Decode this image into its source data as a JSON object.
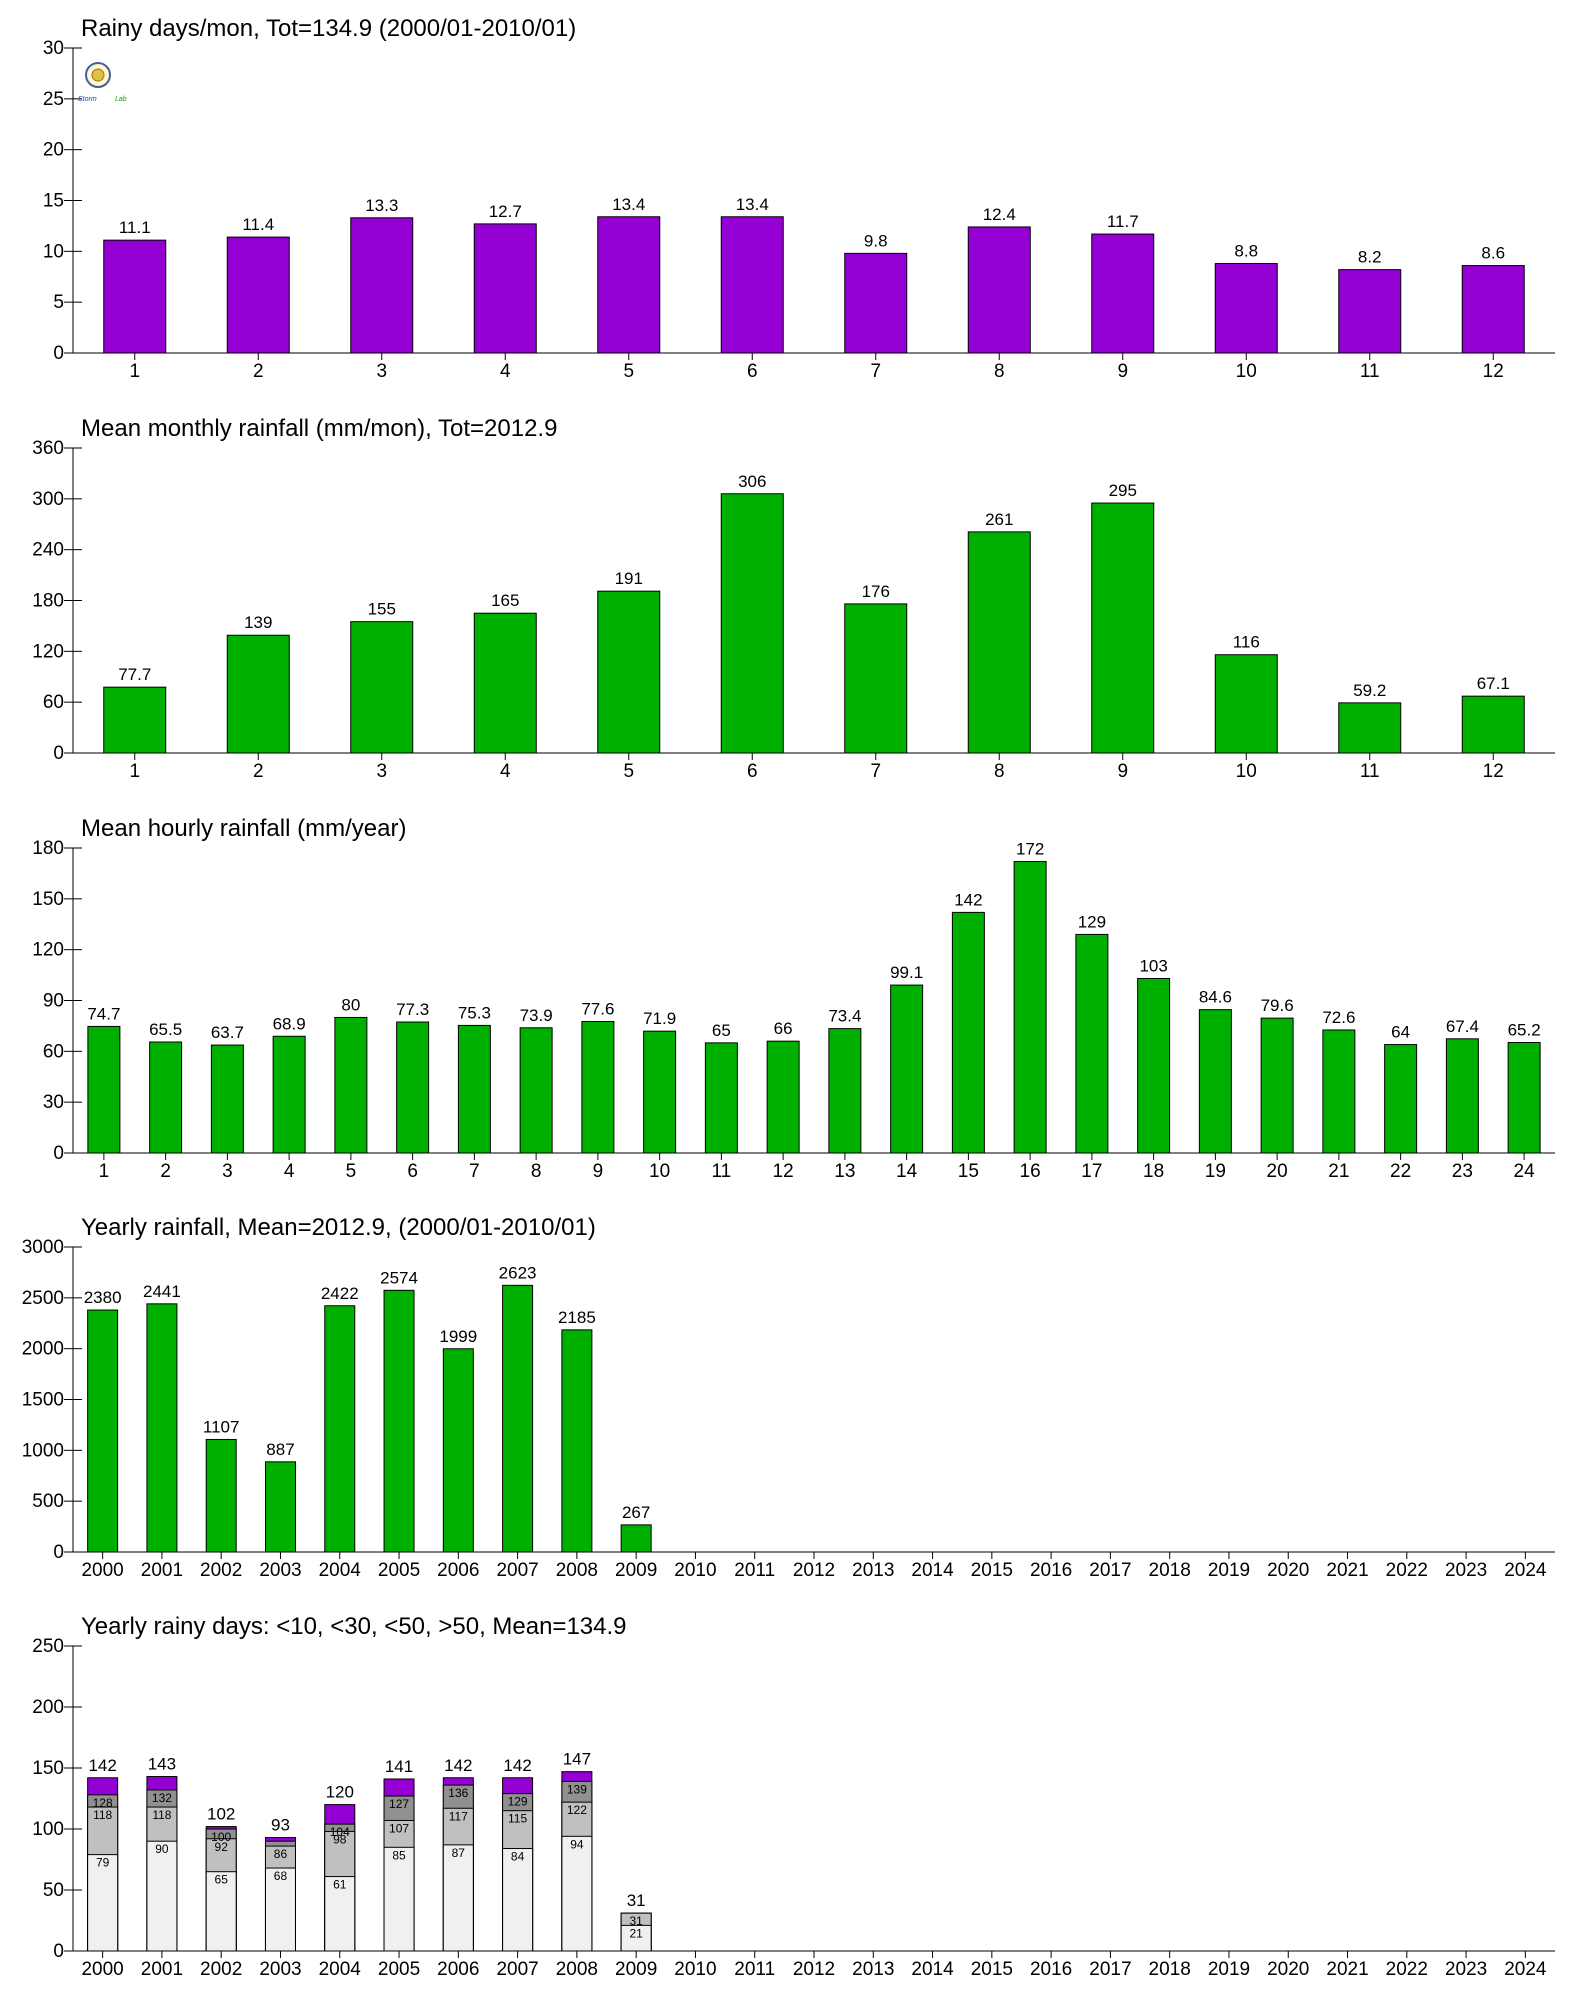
{
  "logo": {
    "text_a": "Storm",
    "text_b": "Lab"
  },
  "charts": [
    {
      "id": "rainy-days",
      "title": "Rainy days/mon, Tot=134.9 (2000/01-2010/01)",
      "type": "bar",
      "color": "#9400d3",
      "ylim": [
        0,
        30
      ],
      "yticks": [
        0,
        5,
        10,
        15,
        20,
        25,
        30
      ],
      "categories": [
        "1",
        "2",
        "3",
        "4",
        "5",
        "6",
        "7",
        "8",
        "9",
        "10",
        "11",
        "12"
      ],
      "values": [
        11.1,
        11.4,
        13.3,
        12.7,
        13.4,
        13.4,
        9.8,
        12.4,
        11.7,
        8.8,
        8.2,
        8.6
      ],
      "labels": [
        "11.1",
        "11.4",
        "13.3",
        "12.7",
        "13.4",
        "13.4",
        "9.8",
        "12.4",
        "11.7",
        "8.8",
        "8.2",
        "8.6"
      ]
    },
    {
      "id": "monthly-rainfall",
      "title": "Mean monthly rainfall (mm/mon), Tot=2012.9",
      "type": "bar",
      "color": "#00b000",
      "ylim": [
        0,
        360
      ],
      "yticks": [
        0,
        60,
        120,
        180,
        240,
        300,
        360
      ],
      "categories": [
        "1",
        "2",
        "3",
        "4",
        "5",
        "6",
        "7",
        "8",
        "9",
        "10",
        "11",
        "12"
      ],
      "values": [
        77.7,
        139,
        155,
        165,
        191,
        306,
        176,
        261,
        295,
        116,
        59.2,
        67.1
      ],
      "labels": [
        "77.7",
        "139",
        "155",
        "165",
        "191",
        "306",
        "176",
        "261",
        "295",
        "116",
        "59.2",
        "67.1"
      ]
    },
    {
      "id": "hourly-rainfall",
      "title": "Mean hourly rainfall (mm/year)",
      "type": "bar",
      "color": "#00b000",
      "ylim": [
        0,
        180
      ],
      "yticks": [
        0,
        30,
        60,
        90,
        120,
        150,
        180
      ],
      "categories": [
        "1",
        "2",
        "3",
        "4",
        "5",
        "6",
        "7",
        "8",
        "9",
        "10",
        "11",
        "12",
        "13",
        "14",
        "15",
        "16",
        "17",
        "18",
        "19",
        "20",
        "21",
        "22",
        "23",
        "24"
      ],
      "values": [
        74.7,
        65.5,
        63.7,
        68.9,
        80,
        77.3,
        75.3,
        73.9,
        77.6,
        71.9,
        65,
        66,
        73.4,
        99.1,
        142,
        172,
        129,
        103,
        84.6,
        79.6,
        72.6,
        64,
        67.4,
        65.2
      ],
      "labels": [
        "74.7",
        "65.5",
        "63.7",
        "68.9",
        "80",
        "77.3",
        "75.3",
        "73.9",
        "77.6",
        "71.9",
        "65",
        "66",
        "73.4",
        "99.1",
        "142",
        "172",
        "129",
        "103",
        "84.6",
        "79.6",
        "72.6",
        "64",
        "67.4",
        "65.2"
      ]
    },
    {
      "id": "yearly-rainfall",
      "title": "Yearly rainfall, Mean=2012.9, (2000/01-2010/01)",
      "type": "bar",
      "color": "#00b000",
      "ylim": [
        0,
        3000
      ],
      "yticks": [
        0,
        500,
        1000,
        1500,
        2000,
        2500,
        3000
      ],
      "categories": [
        "2000",
        "2001",
        "2002",
        "2003",
        "2004",
        "2005",
        "2006",
        "2007",
        "2008",
        "2009",
        "2010",
        "2011",
        "2012",
        "2013",
        "2014",
        "2015",
        "2016",
        "2017",
        "2018",
        "2019",
        "2020",
        "2021",
        "2022",
        "2023",
        "2024"
      ],
      "values": [
        2380,
        2441,
        1107,
        887,
        2422,
        2574,
        1999,
        2623,
        2185,
        267,
        null,
        null,
        null,
        null,
        null,
        null,
        null,
        null,
        null,
        null,
        null,
        null,
        null,
        null,
        null
      ],
      "labels": [
        "2380",
        "2441",
        "1107",
        "887",
        "2422",
        "2574",
        "1999",
        "2623",
        "2185",
        "267",
        "",
        "",
        "",
        "",
        "",
        "",
        "",
        "",
        "",
        "",
        "",
        "",
        "",
        "",
        ""
      ]
    },
    {
      "id": "yearly-rainy-days",
      "title": "Yearly rainy days: <10, <30, <50, >50, Mean=134.9",
      "type": "stacked-bar",
      "ylim": [
        0,
        250
      ],
      "yticks": [
        0,
        50,
        100,
        150,
        200,
        250
      ],
      "categories": [
        "2000",
        "2001",
        "2002",
        "2003",
        "2004",
        "2005",
        "2006",
        "2007",
        "2008",
        "2009",
        "2010",
        "2011",
        "2012",
        "2013",
        "2014",
        "2015",
        "2016",
        "2017",
        "2018",
        "2019",
        "2020",
        "2021",
        "2022",
        "2023",
        "2024"
      ],
      "layer_colors": [
        "#f0f0f0",
        "#c0c0c0",
        "#909090",
        "#9400d3"
      ],
      "cumulative": [
        [
          79,
          118,
          128,
          142
        ],
        [
          90,
          118,
          132,
          143
        ],
        [
          65,
          92,
          100,
          102
        ],
        [
          68,
          86,
          90,
          93
        ],
        [
          61,
          98,
          104,
          120
        ],
        [
          85,
          107,
          127,
          141
        ],
        [
          87,
          117,
          136,
          142
        ],
        [
          84,
          115,
          129,
          142
        ],
        [
          94,
          122,
          139,
          147
        ],
        [
          21,
          31,
          31,
          31
        ],
        null,
        null,
        null,
        null,
        null,
        null,
        null,
        null,
        null,
        null,
        null,
        null,
        null,
        null,
        null
      ],
      "layer_labels": [
        [
          "79",
          "118",
          "128"
        ],
        [
          "90",
          "118",
          "132"
        ],
        [
          "65",
          "92",
          "100"
        ],
        [
          "68",
          "86",
          ""
        ],
        [
          "61",
          "98",
          "104"
        ],
        [
          "85",
          "107",
          "127"
        ],
        [
          "87",
          "117",
          "136"
        ],
        [
          "84",
          "115",
          "129"
        ],
        [
          "94",
          "122",
          "139"
        ],
        [
          "21",
          "31",
          ""
        ],
        null,
        null,
        null,
        null,
        null,
        null,
        null,
        null,
        null,
        null,
        null,
        null,
        null,
        null,
        null
      ],
      "totals": [
        "142",
        "143",
        "102",
        "93",
        "120",
        "141",
        "142",
        "142",
        "147",
        "31",
        "",
        "",
        "",
        "",
        "",
        "",
        "",
        "",
        "",
        "",
        "",
        "",
        "",
        "",
        ""
      ]
    }
  ]
}
